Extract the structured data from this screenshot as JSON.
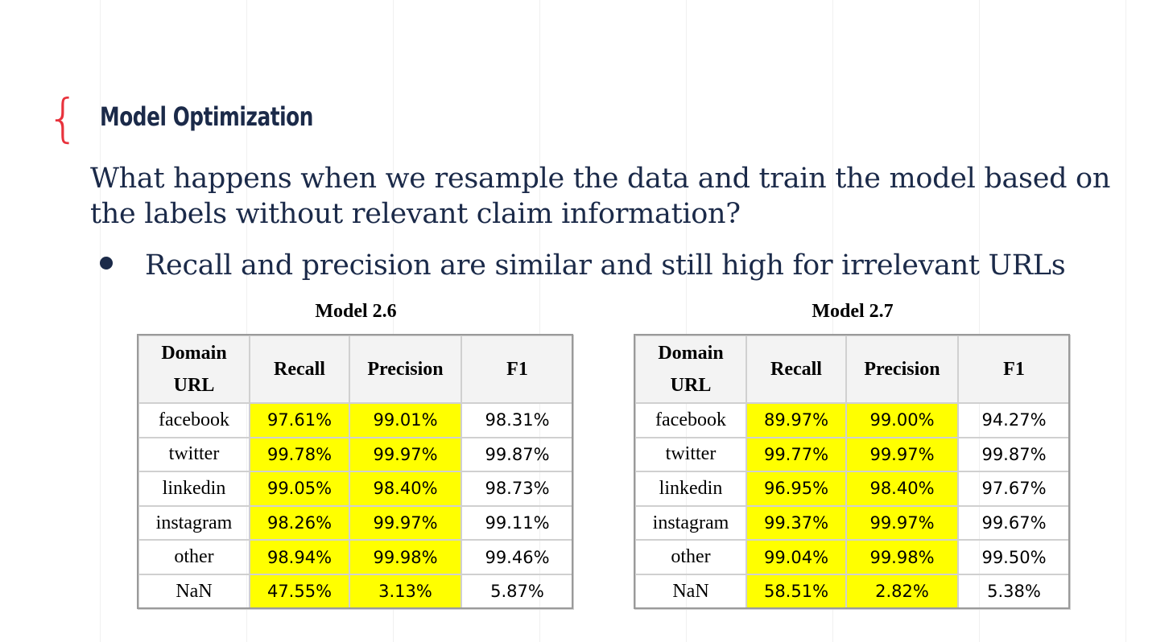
{
  "slide": {
    "title": "Model Optimization",
    "question": "What happens when we resample the data and train the model based on the labels without relevant claim information?",
    "bullets": [
      "Recall and precision are similar and still high for irrelevant URLs"
    ]
  },
  "tables": [
    {
      "caption": "Model 2.6",
      "headers": [
        "Domain URL",
        "Recall",
        "Precision",
        "F1"
      ],
      "rows": [
        {
          "domain": "facebook",
          "recall": "97.61%",
          "precision": "99.01%",
          "f1": "98.31%"
        },
        {
          "domain": "twitter",
          "recall": "99.78%",
          "precision": "99.97%",
          "f1": "99.87%"
        },
        {
          "domain": "linkedin",
          "recall": "99.05%",
          "precision": "98.40%",
          "f1": "98.73%"
        },
        {
          "domain": "instagram",
          "recall": "98.26%",
          "precision": "99.97%",
          "f1": "99.11%"
        },
        {
          "domain": "other",
          "recall": "98.94%",
          "precision": "99.98%",
          "f1": "99.46%"
        },
        {
          "domain": "NaN",
          "recall": "47.55%",
          "precision": "3.13%",
          "f1": "5.87%"
        }
      ]
    },
    {
      "caption": "Model 2.7",
      "headers": [
        "Domain URL",
        "Recall",
        "Precision",
        "F1"
      ],
      "rows": [
        {
          "domain": "facebook",
          "recall": "89.97%",
          "precision": "99.00%",
          "f1": "94.27%"
        },
        {
          "domain": "twitter",
          "recall": "99.77%",
          "precision": "99.97%",
          "f1": "99.87%"
        },
        {
          "domain": "linkedin",
          "recall": "96.95%",
          "precision": "98.40%",
          "f1": "97.67%"
        },
        {
          "domain": "instagram",
          "recall": "99.37%",
          "precision": "99.97%",
          "f1": "99.67%"
        },
        {
          "domain": "other",
          "recall": "99.04%",
          "precision": "99.98%",
          "f1": "99.50%"
        },
        {
          "domain": "NaN",
          "recall": "58.51%",
          "precision": "2.82%",
          "f1": "5.38%"
        }
      ]
    }
  ],
  "colors": {
    "accent_brace": "#e8323c",
    "title_text": "#1b2a49",
    "highlight": "#ffff00",
    "header_bg": "#f3f3f3"
  }
}
